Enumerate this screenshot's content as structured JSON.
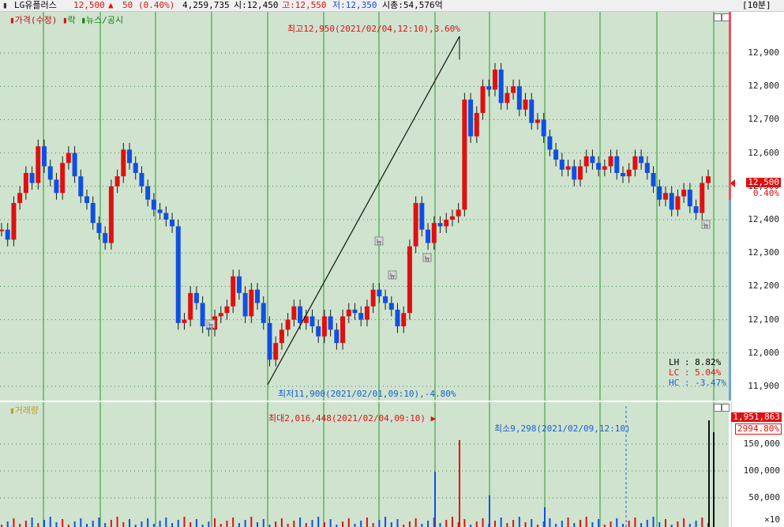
{
  "header": {
    "stock_name": "LG유플러스",
    "price": "12,500",
    "change_arrow": "▲",
    "change": "50",
    "change_pct": "(0.40%)",
    "volume": "4,259,735",
    "open": "시:12,450",
    "high": "고:12,550",
    "low": "저:12,350",
    "market_cap": "시총:54,576억",
    "interval": "[10분]"
  },
  "price_panel": {
    "title_price": "가격(수정)",
    "title_flag": "락",
    "title_news": "뉴스/공시",
    "y_ticks": [
      "12,900",
      "12,800",
      "12,700",
      "12,600",
      "12,500",
      "12,400",
      "12,300",
      "12,200",
      "12,100",
      "12,000",
      "11,900"
    ],
    "current_price": "12,500",
    "current_pct": "0.40%",
    "high_annotation": "최고12,950(2021/02/04,12:10),3.60%",
    "low_annotation": "최저11,900(2021/02/01,09:10),-4.80%",
    "news_marker": "뉴",
    "stats": {
      "lh": "LH :  8.82%",
      "lc": "LC :  5.04%",
      "hc": "HC : -3.47%"
    }
  },
  "volume_panel": {
    "title": "거래량",
    "y_ticks": [
      "150,000",
      "100,000",
      "50,000"
    ],
    "scale": "×10",
    "current_volume": "1,951,863",
    "current_pct": "2994.80%",
    "max_annotation": "최대2,016,448(2021/02/04,09:10)",
    "min_annotation": "최소9,298(2021/02/09,12:10)"
  },
  "colors": {
    "up": "#e01010",
    "down": "#1050e0",
    "grid": "#4a8a4a",
    "session_line": "#2a9a2a",
    "bg": "#cfe3cf",
    "annotation_red": "#e01010",
    "annotation_blue": "#1a5fd0"
  },
  "chart_data": {
    "type": "bar",
    "title": "",
    "ylabel": "",
    "ylim": [
      11880,
      12980
    ],
    "series": [
      {
        "values": [
          12370,
          12340,
          12450,
          12480,
          12540,
          12510,
          12620,
          12560,
          12520,
          12480,
          12570,
          12600,
          12530,
          12470,
          12450,
          12390,
          12360,
          12330,
          12500,
          12530,
          12610,
          12570,
          12540,
          12500,
          12460,
          12430,
          12420,
          12400,
          12380,
          12090,
          12100,
          12180,
          12150,
          12080,
          12070,
          12110,
          12120,
          12140,
          12230,
          12180,
          12110,
          12190,
          12150,
          12090,
          11980,
          12030,
          12070,
          12100,
          12140,
          12090,
          12110,
          12080,
          12050,
          12110,
          12070,
          12030,
          12110,
          12130,
          12120,
          12100,
          12140,
          12190,
          12170,
          12150,
          12130,
          12080,
          12120,
          12320,
          12450,
          12370,
          12330,
          12390,
          12380,
          12400,
          12410,
          12430,
          12760,
          12650,
          12720,
          12800,
          12790,
          12850,
          12750,
          12780,
          12800,
          12730,
          12760,
          12690,
          12700,
          12650,
          12610,
          12580,
          12550,
          12560,
          12520,
          12560,
          12590,
          12570,
          12550,
          12560,
          12590,
          12540,
          12530,
          12550,
          12590,
          12570,
          12540,
          12500,
          12460,
          12480,
          12430,
          12470,
          12490,
          12440,
          12420,
          12510,
          12530
        ]
      }
    ]
  }
}
